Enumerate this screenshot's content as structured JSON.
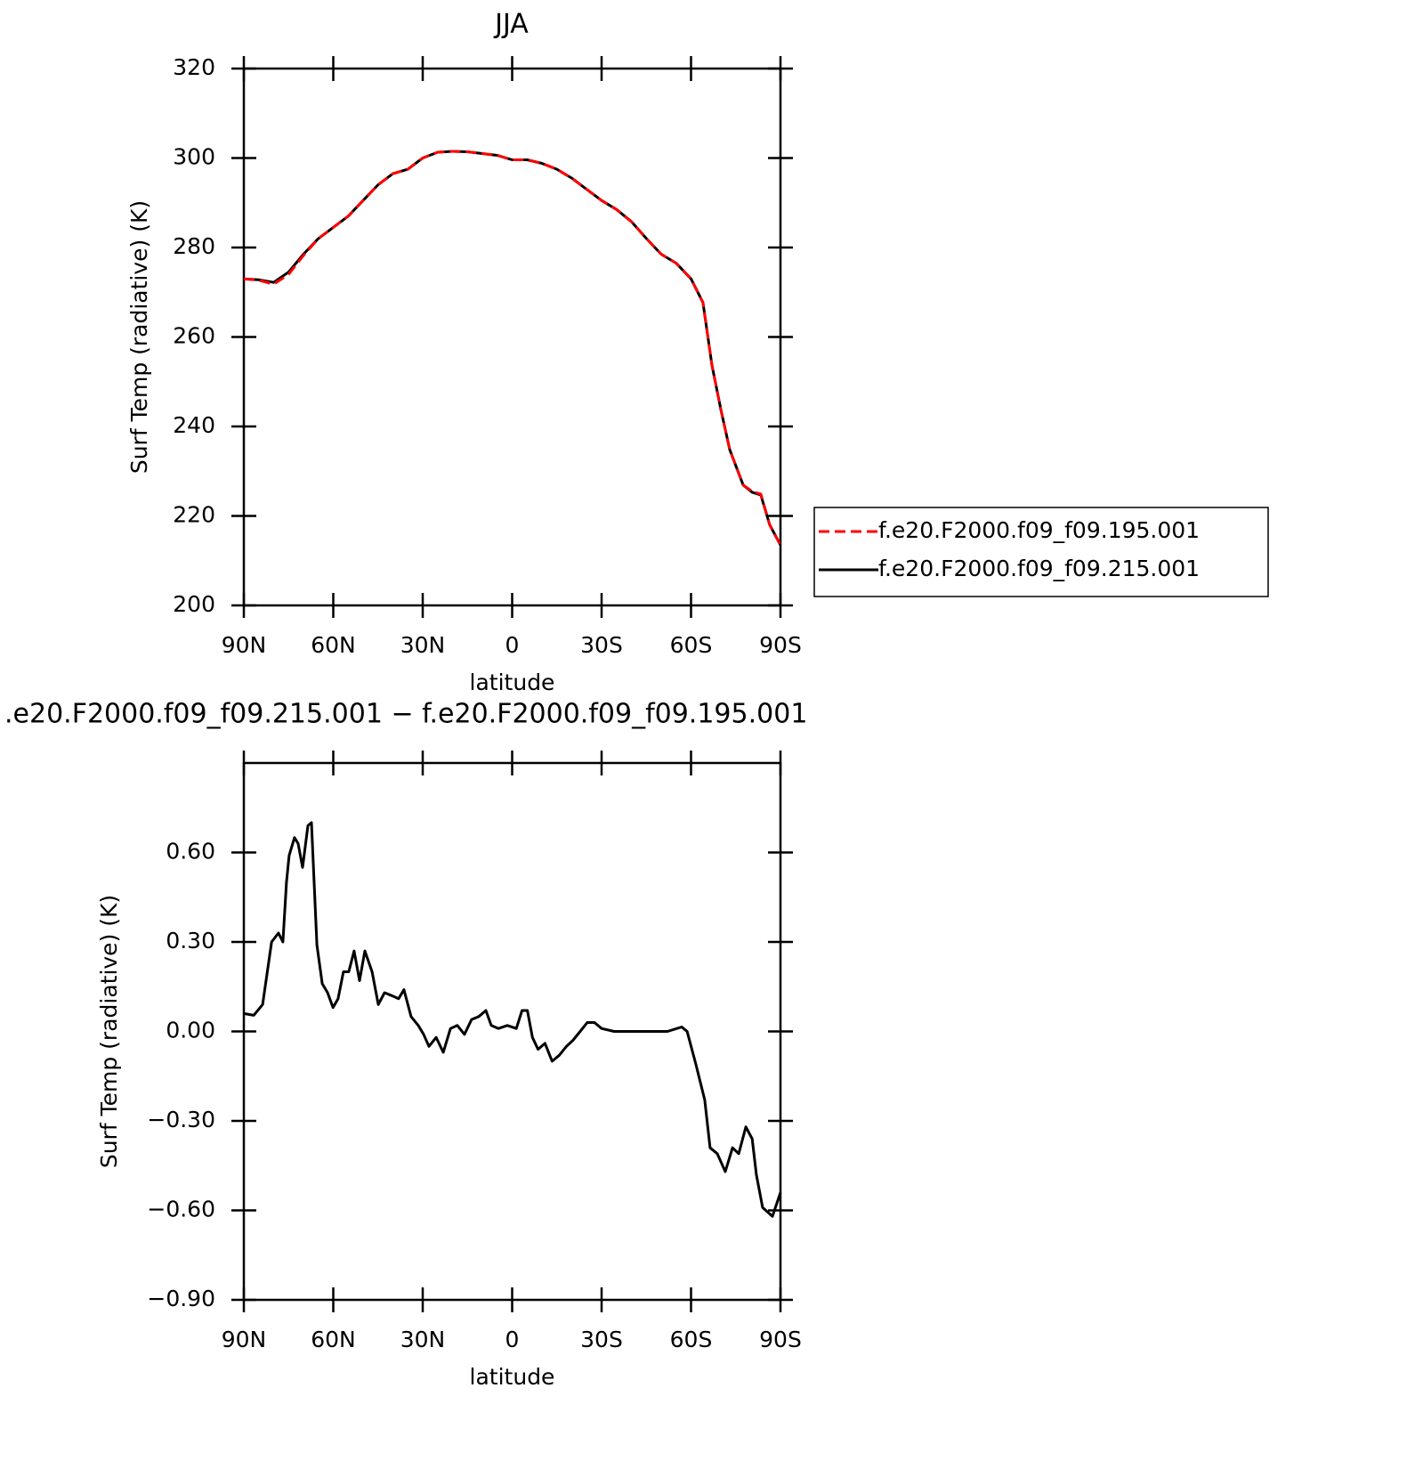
{
  "chart_data": [
    {
      "type": "line",
      "title": "JJA",
      "ylabel": "Surf Temp (radiative) (K)",
      "xlabel": "latitude",
      "x": [
        90,
        85,
        80,
        75,
        70,
        65,
        60,
        55,
        50,
        45,
        40,
        35,
        30,
        25,
        20,
        15,
        10,
        5,
        0,
        -5,
        -10,
        -15,
        -20,
        -25,
        -30,
        -35,
        -40,
        -45,
        -50,
        -55,
        -60,
        -64,
        -67,
        -70,
        -73,
        -77.5,
        -80.5,
        -83.4,
        -86.4,
        -90
      ],
      "series": [
        {
          "name": "f.e20.F2000.f09_f09.195.001",
          "color": "#ff0000",
          "linestyle": "dashed",
          "values": [
            273.0,
            272.7,
            271.8,
            274.0,
            278.2,
            282.0,
            284.5,
            287.0,
            290.5,
            294.0,
            296.5,
            297.5,
            300.0,
            301.3,
            301.5,
            301.4,
            301.0,
            300.6,
            299.6,
            299.6,
            298.8,
            297.5,
            295.5,
            293.0,
            290.5,
            288.5,
            285.8,
            282.0,
            278.5,
            276.5,
            273.0,
            267.7,
            253.7,
            243.8,
            234.8,
            226.9,
            225.5,
            224.9,
            218.0,
            213.5
          ]
        },
        {
          "name": "f.e20.F2000.f09_f09.215.001",
          "color": "#000000",
          "linestyle": "solid",
          "values": [
            273.0,
            272.8,
            272.2,
            274.5,
            278.5,
            282.0,
            284.5,
            287.0,
            290.5,
            294.0,
            296.5,
            297.5,
            300.0,
            301.3,
            301.5,
            301.4,
            301.0,
            300.6,
            299.6,
            299.6,
            298.8,
            297.5,
            295.5,
            293.0,
            290.5,
            288.5,
            285.8,
            282.0,
            278.5,
            276.5,
            273.0,
            267.7,
            253.7,
            243.8,
            234.8,
            226.9,
            225.3,
            224.7,
            218.0,
            213.5
          ]
        }
      ],
      "xlim": [
        90,
        -90
      ],
      "xticks": [
        {
          "value": 90,
          "label": "90N"
        },
        {
          "value": 60,
          "label": "60N"
        },
        {
          "value": 30,
          "label": "30N"
        },
        0,
        {
          "value": -30,
          "label": "30S"
        },
        {
          "value": -60,
          "label": "60S"
        },
        {
          "value": -90,
          "label": "90S"
        }
      ],
      "ylim": [
        200,
        320
      ],
      "yticks": [
        200,
        220,
        240,
        260,
        280,
        300,
        320
      ],
      "legend": "right"
    },
    {
      "type": "line",
      "title": ".e20.F2000.f09_f09.215.001 − f.e20.F2000.f09_f09.195.001",
      "ylabel": "Surf Temp (radiative) (K)",
      "xlabel": "latitude",
      "x": [
        90,
        86.7,
        83.7,
        80.7,
        78.4,
        76.9,
        75.7,
        74.8,
        73.0,
        71.8,
        70.3,
        68.5,
        67.3,
        65.5,
        63.7,
        61.9,
        60.1,
        58.4,
        56.6,
        54.8,
        53.0,
        51.2,
        49.4,
        47.0,
        44.9,
        42.8,
        40.4,
        38.1,
        36.3,
        33.9,
        31.5,
        29.7,
        27.9,
        25.5,
        23.1,
        20.7,
        18.4,
        16.0,
        13.6,
        11.2,
        8.8,
        7.0,
        4.6,
        1.6,
        -1.4,
        -3.3,
        -5.1,
        -6.8,
        -8.7,
        -11.0,
        -13.4,
        -15.8,
        -18.2,
        -20.4,
        -22.8,
        -25.2,
        -27.6,
        -30.0,
        -34.2,
        -40.1,
        -46.1,
        -52.1,
        -56.9,
        -58.7,
        -61.6,
        -64.6,
        -66.4,
        -68.8,
        -71.5,
        -73.9,
        -76.0,
        -78.4,
        -80.5,
        -81.9,
        -84.0,
        -87.3,
        -90
      ],
      "color": "#000000",
      "values": [
        0.06,
        0.054,
        0.09,
        0.3,
        0.33,
        0.3,
        0.5,
        0.59,
        0.65,
        0.63,
        0.55,
        0.69,
        0.7,
        0.29,
        0.16,
        0.13,
        0.08,
        0.11,
        0.2,
        0.2,
        0.27,
        0.17,
        0.27,
        0.2,
        0.09,
        0.13,
        0.12,
        0.11,
        0.14,
        0.05,
        0.02,
        -0.01,
        -0.05,
        -0.02,
        -0.07,
        0.01,
        0.02,
        -0.01,
        0.04,
        0.05,
        0.07,
        0.02,
        0.01,
        0.02,
        0.01,
        0.07,
        0.07,
        -0.02,
        -0.06,
        -0.04,
        -0.1,
        -0.08,
        -0.05,
        -0.03,
        0.0,
        0.03,
        0.03,
        0.01,
        0.0,
        0.0,
        0.0,
        0.0,
        0.015,
        0.0,
        -0.11,
        -0.23,
        -0.39,
        -0.41,
        -0.47,
        -0.39,
        -0.41,
        -0.32,
        -0.36,
        -0.48,
        -0.59,
        -0.62,
        -0.54
      ],
      "xlim": [
        90,
        -90
      ],
      "xticks": [
        {
          "value": 90,
          "label": "90N"
        },
        {
          "value": 60,
          "label": "60N"
        },
        {
          "value": 30,
          "label": "30N"
        },
        0,
        {
          "value": -30,
          "label": "30S"
        },
        {
          "value": -60,
          "label": "60S"
        },
        {
          "value": -90,
          "label": "90S"
        }
      ],
      "ylim": [
        -0.9,
        0.9
      ],
      "yticks": [
        {
          "value": -0.9,
          "label": "−0.90"
        },
        {
          "value": -0.6,
          "label": "−0.60"
        },
        {
          "value": -0.3,
          "label": "−0.30"
        },
        {
          "value": 0,
          "label": "0.00"
        },
        {
          "value": 0.3,
          "label": "0.30"
        },
        {
          "value": 0.6,
          "label": "0.60"
        }
      ]
    }
  ]
}
